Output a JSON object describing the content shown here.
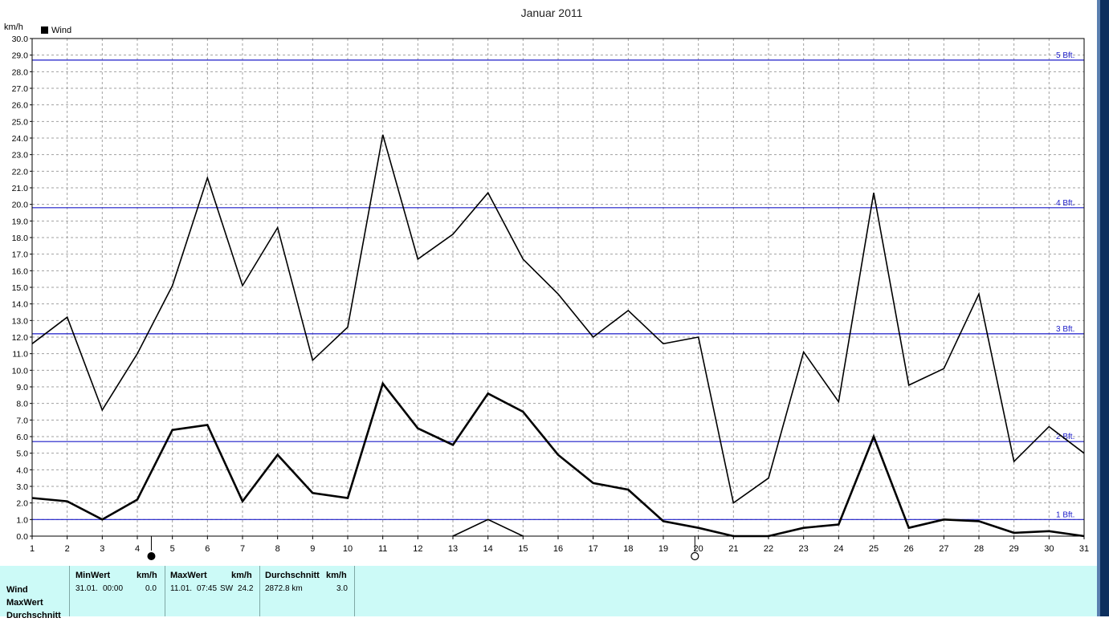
{
  "chart_data": {
    "type": "line",
    "title": "Januar 2011",
    "ylabel": "km/h",
    "ylim": [
      0,
      30
    ],
    "grid": true,
    "legend": {
      "placement": "top-left",
      "entries": [
        "Wind"
      ]
    },
    "x": [
      1,
      2,
      3,
      4,
      5,
      6,
      7,
      8,
      9,
      10,
      11,
      12,
      13,
      14,
      15,
      16,
      17,
      18,
      19,
      20,
      21,
      22,
      23,
      24,
      25,
      26,
      27,
      28,
      29,
      30,
      31
    ],
    "x_tick_labels": [
      "1",
      "2",
      "3",
      "4",
      "5",
      "6",
      "7",
      "8",
      "9",
      "10",
      "11",
      "12",
      "13",
      "14",
      "15",
      "16",
      "17",
      "18",
      "19",
      "20",
      "21",
      "22",
      "23",
      "24",
      "25",
      "26",
      "27",
      "28",
      "29",
      "30",
      "31"
    ],
    "y_tick_labels": [
      "0.0",
      "1.0",
      "2.0",
      "3.0",
      "4.0",
      "5.0",
      "6.0",
      "7.0",
      "8.0",
      "9.0",
      "10.0",
      "11.0",
      "12.0",
      "13.0",
      "14.0",
      "15.0",
      "16.0",
      "17.0",
      "18.0",
      "19.0",
      "20.0",
      "21.0",
      "22.0",
      "23.0",
      "24.0",
      "25.0",
      "26.0",
      "27.0",
      "28.0",
      "29.0",
      "30.0"
    ],
    "series": [
      {
        "role": "max",
        "values": [
          11.6,
          13.2,
          7.6,
          11.0,
          15.1,
          21.6,
          15.1,
          18.6,
          10.6,
          12.6,
          24.2,
          16.7,
          18.2,
          20.7,
          16.7,
          14.6,
          12.0,
          13.6,
          11.6,
          12.0,
          2.0,
          3.5,
          11.1,
          8.1,
          20.7,
          9.1,
          10.1,
          14.6,
          4.5,
          6.6,
          5.0
        ]
      },
      {
        "role": "average",
        "values": [
          2.3,
          2.1,
          1.0,
          2.2,
          6.4,
          6.7,
          2.1,
          4.9,
          2.6,
          2.3,
          9.2,
          6.5,
          5.5,
          8.6,
          7.5,
          4.9,
          3.2,
          2.8,
          0.9,
          0.5,
          0.0,
          0.0,
          0.5,
          0.7,
          6.0,
          0.5,
          1.0,
          0.9,
          0.2,
          0.3,
          0.0
        ]
      },
      {
        "role": "min",
        "values": [
          null,
          null,
          null,
          null,
          null,
          null,
          null,
          null,
          null,
          null,
          null,
          null,
          0.0,
          1.0,
          0.0,
          null,
          null,
          null,
          null,
          null,
          null,
          null,
          null,
          null,
          null,
          null,
          null,
          null,
          null,
          null,
          null
        ]
      }
    ],
    "reference_lines": [
      {
        "label": "1 Bft.",
        "value": 1.0
      },
      {
        "label": "2 Bft.",
        "value": 5.7
      },
      {
        "label": "3 Bft.",
        "value": 12.2
      },
      {
        "label": "4 Bft.",
        "value": 19.8
      },
      {
        "label": "5 Bft.",
        "value": 28.7
      }
    ],
    "moon_phases": [
      {
        "day": 4.4,
        "phase": "new-moon"
      },
      {
        "day": 19.9,
        "phase": "full-moon"
      }
    ]
  },
  "summary": {
    "row_labels": [
      "Wind",
      "MaxWert",
      "Durchschnitt"
    ],
    "min": {
      "header": "MinWert",
      "unit": "km/h",
      "date": "31.01.",
      "time": "00:00",
      "value": "0.0"
    },
    "max": {
      "header": "MaxWert",
      "unit": "km/h",
      "date": "11.01.",
      "time": "07:45",
      "dir": "SW",
      "value": "24.2"
    },
    "avg": {
      "header": "Durchschnitt",
      "unit": "km/h",
      "distance": "2872.8 km",
      "value": "3.0"
    }
  },
  "colors": {
    "ref_line": "#1c1cc8",
    "series": "#000000",
    "grid": "#a0a0a0",
    "panel": "#ccfaf7"
  }
}
